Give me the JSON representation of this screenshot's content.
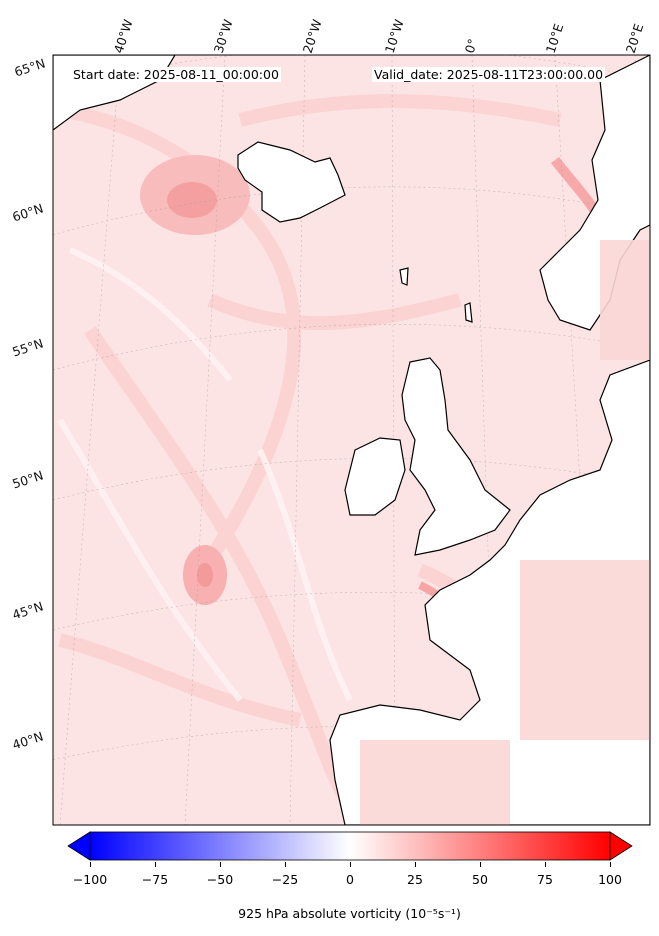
{
  "map": {
    "start_date": "Start date: 2025-08-11_00:00:00",
    "valid_date": "Valid_date: 2025-08-11T23:00:00.00",
    "colors": {
      "ocean_base": "#fde4e4",
      "light_pink": "#fbd2d2",
      "pink": "#f9b8b8",
      "land": "#ffffff",
      "coast": "#000000"
    },
    "lon_labels": [
      "40°W",
      "30°W",
      "20°W",
      "10°W",
      "0°",
      "10°E",
      "20°E"
    ],
    "lat_labels": [
      "65°N",
      "60°N",
      "55°N",
      "50°N",
      "45°N",
      "40°N"
    ]
  },
  "colorbar": {
    "ticks": [
      "−100",
      "−75",
      "−50",
      "−25",
      "0",
      "25",
      "50",
      "75",
      "100"
    ],
    "tick_values": [
      -100,
      -75,
      -50,
      -25,
      0,
      25,
      50,
      75,
      100
    ],
    "min": -100,
    "max": 100,
    "cmap": "bwr",
    "label": "925 hPa absolute vorticity (10⁻⁵s⁻¹)"
  }
}
